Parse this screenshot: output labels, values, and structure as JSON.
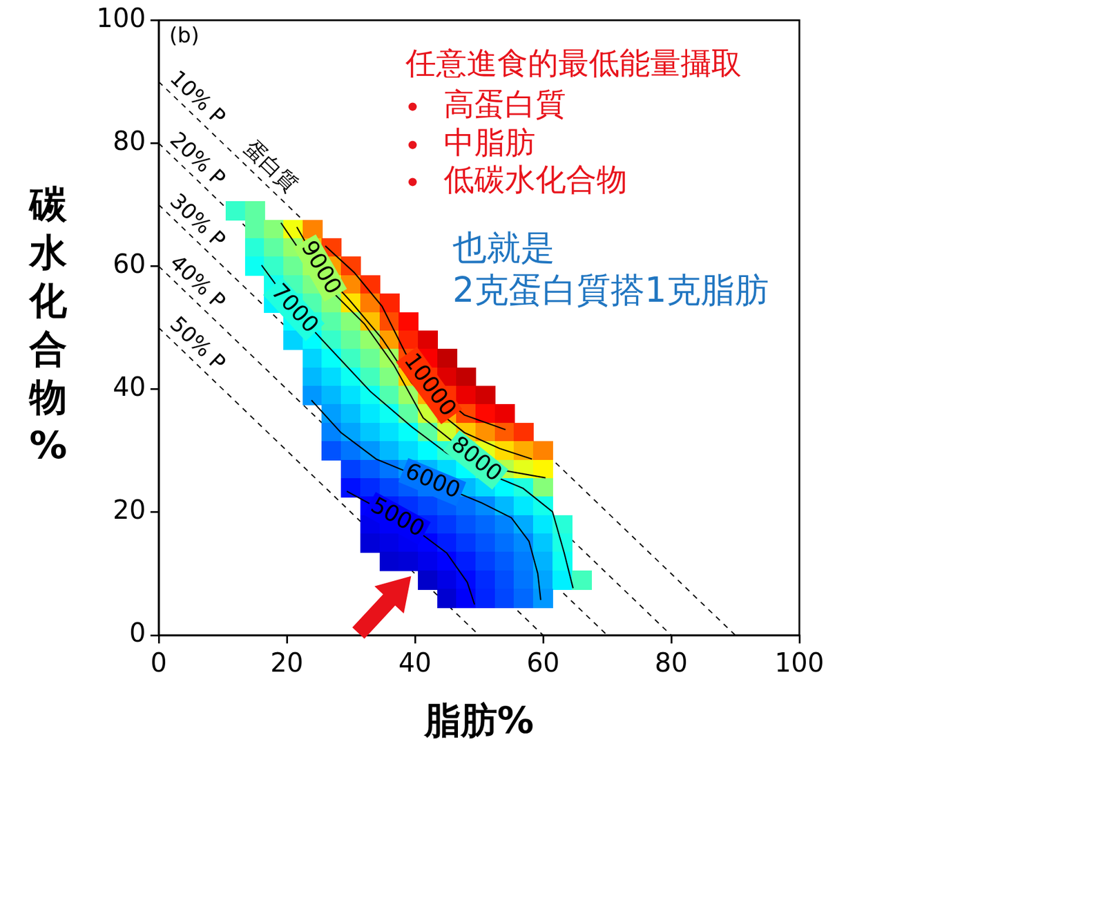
{
  "chart_data": {
    "type": "contour",
    "panel": "(b)",
    "x_label": "脂肪%",
    "y_label": "碳水化合物%",
    "xlim": [
      0,
      100
    ],
    "xticks": [
      0,
      20,
      40,
      60,
      80,
      100
    ],
    "ylim": [
      0,
      100
    ],
    "yticks": [
      0,
      20,
      40,
      60,
      80,
      100
    ],
    "grid": false,
    "heatmap": {
      "x": [
        12,
        15,
        18,
        21,
        24,
        27,
        30,
        33,
        36,
        39,
        42,
        45,
        48,
        51,
        54,
        57,
        60,
        63,
        66
      ],
      "y": [
        69,
        66,
        63,
        60,
        57,
        54,
        51,
        48,
        45,
        42,
        39,
        36,
        33,
        30,
        27,
        24,
        21,
        18,
        15,
        12,
        9,
        6
      ],
      "z": [
        [
          7200,
          7500,
          null,
          null,
          null,
          null,
          null,
          null,
          null,
          null,
          null,
          null,
          null,
          null,
          null,
          null,
          null,
          null,
          null
        ],
        [
          null,
          7500,
          7800,
          8600,
          9600,
          null,
          null,
          null,
          null,
          null,
          null,
          null,
          null,
          null,
          null,
          null,
          null,
          null,
          null
        ],
        [
          null,
          7100,
          7500,
          7900,
          9200,
          10100,
          null,
          null,
          null,
          null,
          null,
          null,
          null,
          null,
          null,
          null,
          null,
          null,
          null
        ],
        [
          null,
          6900,
          7200,
          7600,
          8000,
          9400,
          10100,
          null,
          null,
          null,
          null,
          null,
          null,
          null,
          null,
          null,
          null,
          null,
          null
        ],
        [
          null,
          null,
          6950,
          7350,
          7700,
          8700,
          9550,
          10200,
          null,
          null,
          null,
          null,
          null,
          null,
          null,
          null,
          null,
          null,
          null
        ],
        [
          null,
          null,
          6700,
          7050,
          7400,
          7800,
          8900,
          9650,
          10300,
          null,
          null,
          null,
          null,
          null,
          null,
          null,
          null,
          null,
          null
        ],
        [
          null,
          null,
          null,
          6800,
          7100,
          7450,
          7800,
          9150,
          10000,
          10500,
          null,
          null,
          null,
          null,
          null,
          null,
          null,
          null,
          null
        ],
        [
          null,
          null,
          null,
          6500,
          6800,
          7200,
          7550,
          7900,
          9400,
          10300,
          10800,
          null,
          null,
          null,
          null,
          null,
          null,
          null,
          null
        ],
        [
          null,
          null,
          null,
          null,
          6500,
          6850,
          7250,
          7600,
          8000,
          10000,
          10600,
          11000,
          null,
          null,
          null,
          null,
          null,
          null,
          null
        ],
        [
          null,
          null,
          null,
          null,
          6300,
          6550,
          6900,
          7300,
          7750,
          9050,
          10200,
          10800,
          11000,
          null,
          null,
          null,
          null,
          null,
          null
        ],
        [
          null,
          null,
          null,
          null,
          6050,
          6300,
          6600,
          6900,
          7400,
          7950,
          9250,
          10200,
          10700,
          10900,
          null,
          null,
          null,
          null,
          null
        ],
        [
          null,
          null,
          null,
          null,
          null,
          6100,
          6350,
          6650,
          6900,
          7500,
          8300,
          9300,
          10050,
          10500,
          10700,
          null,
          null,
          null,
          null
        ],
        [
          null,
          null,
          null,
          null,
          null,
          5900,
          6150,
          6400,
          6600,
          6850,
          7500,
          8350,
          9100,
          9500,
          9900,
          10200,
          null,
          null,
          null
        ],
        [
          null,
          null,
          null,
          null,
          null,
          5550,
          5800,
          6050,
          6300,
          6550,
          6800,
          7150,
          8050,
          8500,
          8950,
          9300,
          9600,
          null,
          null
        ],
        [
          null,
          null,
          null,
          null,
          null,
          null,
          5400,
          5600,
          5800,
          6050,
          6300,
          6550,
          6800,
          7300,
          8150,
          8500,
          8750,
          null,
          null
        ],
        [
          null,
          null,
          null,
          null,
          null,
          null,
          5050,
          5250,
          5450,
          5600,
          5800,
          6050,
          6300,
          6550,
          6800,
          7050,
          7800,
          null,
          null
        ],
        [
          null,
          null,
          null,
          null,
          null,
          null,
          null,
          4950,
          5150,
          5300,
          5450,
          5600,
          5750,
          5950,
          6300,
          6650,
          6950,
          null,
          null
        ],
        [
          null,
          null,
          null,
          null,
          null,
          null,
          null,
          4800,
          4900,
          5000,
          5200,
          5350,
          5550,
          5700,
          5900,
          6200,
          6650,
          7100,
          null
        ],
        [
          null,
          null,
          null,
          null,
          null,
          null,
          null,
          4650,
          4750,
          4850,
          4950,
          5150,
          5350,
          5550,
          5750,
          5950,
          6400,
          7000,
          null
        ],
        [
          null,
          null,
          null,
          null,
          null,
          null,
          null,
          null,
          4600,
          4650,
          4800,
          4950,
          5150,
          5400,
          5600,
          5850,
          6250,
          6900,
          null
        ],
        [
          null,
          null,
          null,
          null,
          null,
          null,
          null,
          null,
          null,
          null,
          4550,
          4750,
          5000,
          5250,
          5500,
          5800,
          6150,
          6700,
          7300
        ],
        [
          null,
          null,
          null,
          null,
          null,
          null,
          null,
          null,
          null,
          null,
          null,
          4600,
          4900,
          5200,
          5450,
          5700,
          6050,
          null,
          null
        ]
      ],
      "color_range": [
        4000,
        11500
      ]
    },
    "contours": [
      {
        "level": 5000,
        "x": [
          29.36,
          33.94,
          39.45,
          44.95,
          48.17,
          49.3
        ],
        "y": [
          23.4,
          20.82,
          17.67,
          13.37,
          8.6,
          5.0
        ],
        "label_xy": [
          37.2,
          19.0
        ]
      },
      {
        "level": 6000,
        "x": [
          23.85,
          28.44,
          33.94,
          39.45,
          44.95,
          50.46,
          55.05,
          57.8,
          59.17,
          59.63
        ],
        "y": [
          38.2,
          32.95,
          28.65,
          26.27,
          23.88,
          21.49,
          19.1,
          15.28,
          10.03,
          5.73
        ],
        "label_xy": [
          42.7,
          24.9
        ]
      },
      {
        "level": 7000,
        "x": [
          16.06,
          21.1,
          26.61,
          33.03,
          39.45,
          44.95,
          51.38,
          56.88,
          61.47,
          63.3,
          64.68
        ],
        "y": [
          60.17,
          53.01,
          46.8,
          39.64,
          33.91,
          29.61,
          26.27,
          23.88,
          20.06,
          13.37,
          7.64
        ],
        "label_xy": [
          21.1,
          53.0
        ]
      },
      {
        "level": 8000,
        "x": [
          19.08,
          22.02,
          26.61,
          32.11,
          36.7,
          41.28,
          45.87,
          49.54,
          54.13,
          60.37
        ],
        "y": [
          67.05,
          62.56,
          56.35,
          50.62,
          43.94,
          35.34,
          31.52,
          28.46,
          26.74,
          25.6
        ],
        "label_xy": [
          49.5,
          28.5
        ]
      },
      {
        "level": 9000,
        "x": [
          21.56,
          25.23,
          29.82,
          34.86,
          39.45,
          43.12,
          47.71,
          53.21,
          58.26
        ],
        "y": [
          66.38,
          59.69,
          54.44,
          48.23,
          41.07,
          36.77,
          32.95,
          30.37,
          28.65
        ],
        "label_xy": [
          25.2,
          59.7
        ]
      },
      {
        "level": 10000,
        "x": [
          26.0,
          30.5,
          34.86,
          38.53,
          42.2,
          47.71,
          54.13
        ],
        "y": [
          63.3,
          59.0,
          53.49,
          45.85,
          40.59,
          35.82,
          33.43
        ],
        "label_xy": [
          42.2,
          40.6
        ]
      }
    ],
    "protein_lines": {
      "name": "蛋白質",
      "lines": [
        {
          "label": "10% P",
          "x": [
            0,
            90
          ],
          "y": [
            90,
            0
          ],
          "line_style": "dashed"
        },
        {
          "label": "20% P",
          "x": [
            0,
            80
          ],
          "y": [
            80,
            0
          ],
          "line_style": "dashed"
        },
        {
          "label": "30% P",
          "x": [
            0,
            70
          ],
          "y": [
            70,
            0
          ],
          "line_style": "dashed"
        },
        {
          "label": "40% P",
          "x": [
            0,
            60
          ],
          "y": [
            60,
            0
          ],
          "line_style": "dashed"
        },
        {
          "label": "50% P",
          "x": [
            0,
            50
          ],
          "y": [
            50,
            0
          ],
          "line_style": "dashed"
        }
      ]
    },
    "annotations": {
      "heading": "任意進食的最低能量攝取",
      "bullets": [
        "高蛋白質",
        "中脂肪",
        "低碳水化合物"
      ],
      "note": [
        "也就是",
        "2克蛋白質搭1克脂肪"
      ]
    },
    "arrow": {
      "x": 39.4,
      "y": 9.6
    }
  }
}
